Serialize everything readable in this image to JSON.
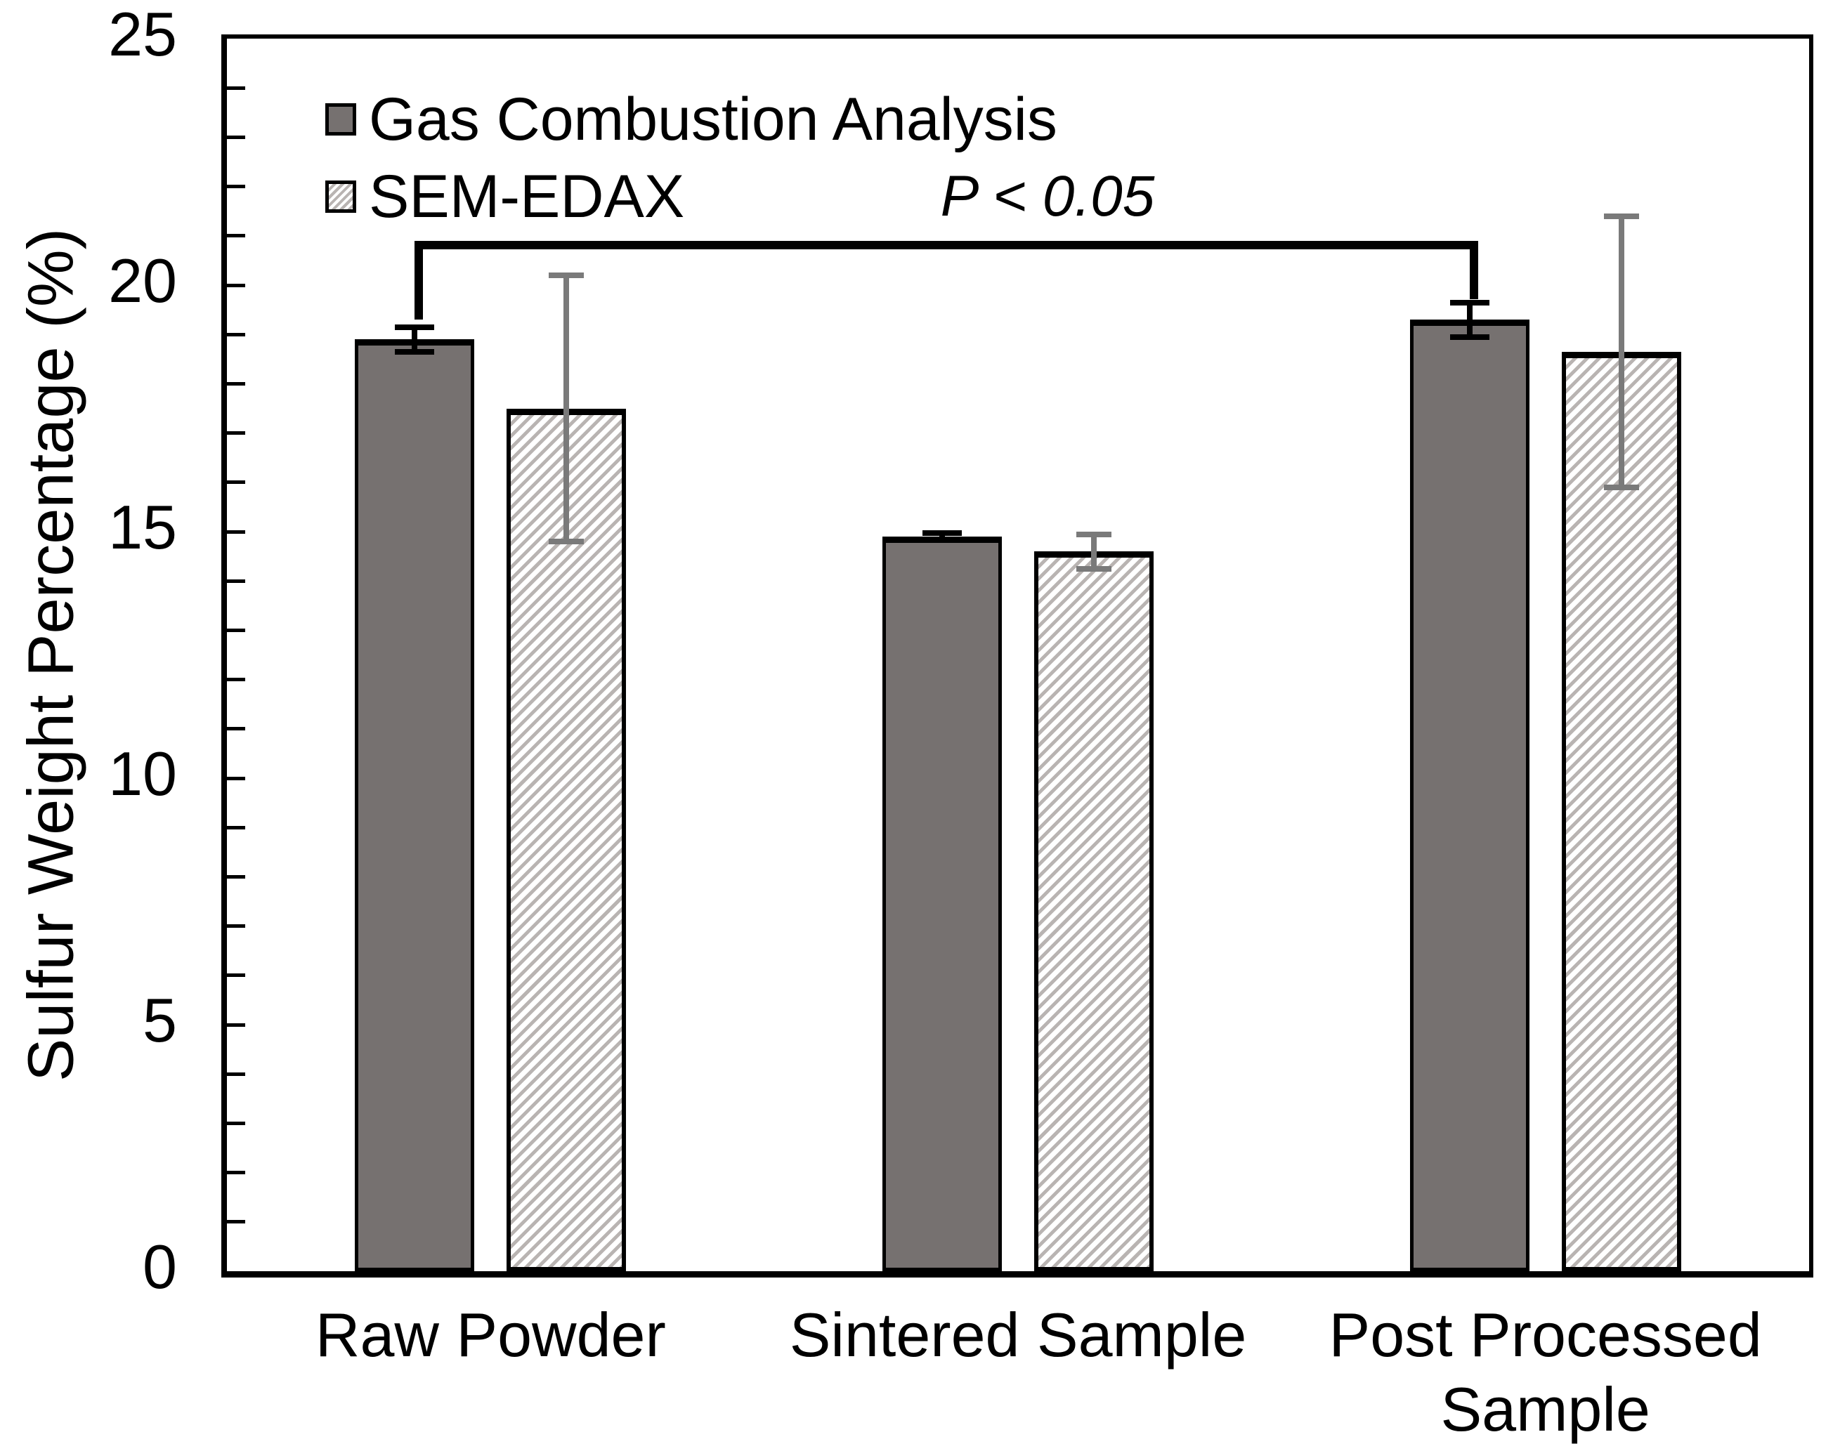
{
  "chart_data": {
    "type": "bar",
    "title": "",
    "categories": [
      "Raw Powder",
      "Sintered Sample",
      "Post Processed Sample"
    ],
    "series": [
      {
        "name": "Gas Combustion Analysis",
        "style": "solid-gray",
        "values": [
          18.9,
          14.9,
          19.3
        ],
        "error_low": [
          18.65,
          14.83,
          18.95
        ],
        "error_high": [
          19.15,
          14.97,
          19.65
        ]
      },
      {
        "name": "SEM-EDAX",
        "style": "hatched",
        "values": [
          17.5,
          14.6,
          18.65
        ],
        "error_low": [
          14.8,
          14.25,
          15.9
        ],
        "error_high": [
          20.2,
          14.95,
          21.4
        ]
      }
    ],
    "xlabel": "",
    "ylabel": "Sulfur Weight Percentage (%)",
    "ylim": [
      0,
      25
    ],
    "yticks": [
      0,
      5,
      10,
      15,
      20,
      25
    ],
    "minor_tick_step": 1,
    "grid": false,
    "legend_position": "top-left-inside",
    "annotation": {
      "text": "P < 0.05",
      "type": "significance-bracket",
      "from_category": "Raw Powder",
      "to_category": "Post Processed Sample",
      "series": "Gas Combustion Analysis"
    }
  },
  "colors": {
    "bar_solid_fill": "#767170",
    "bar_border": "#000000",
    "hatch_line": "#b9b4b2",
    "error_bar_solid_series": "#000000",
    "error_bar_hatched_series": "#7a7a7a",
    "axis": "#000000",
    "background": "#ffffff"
  }
}
